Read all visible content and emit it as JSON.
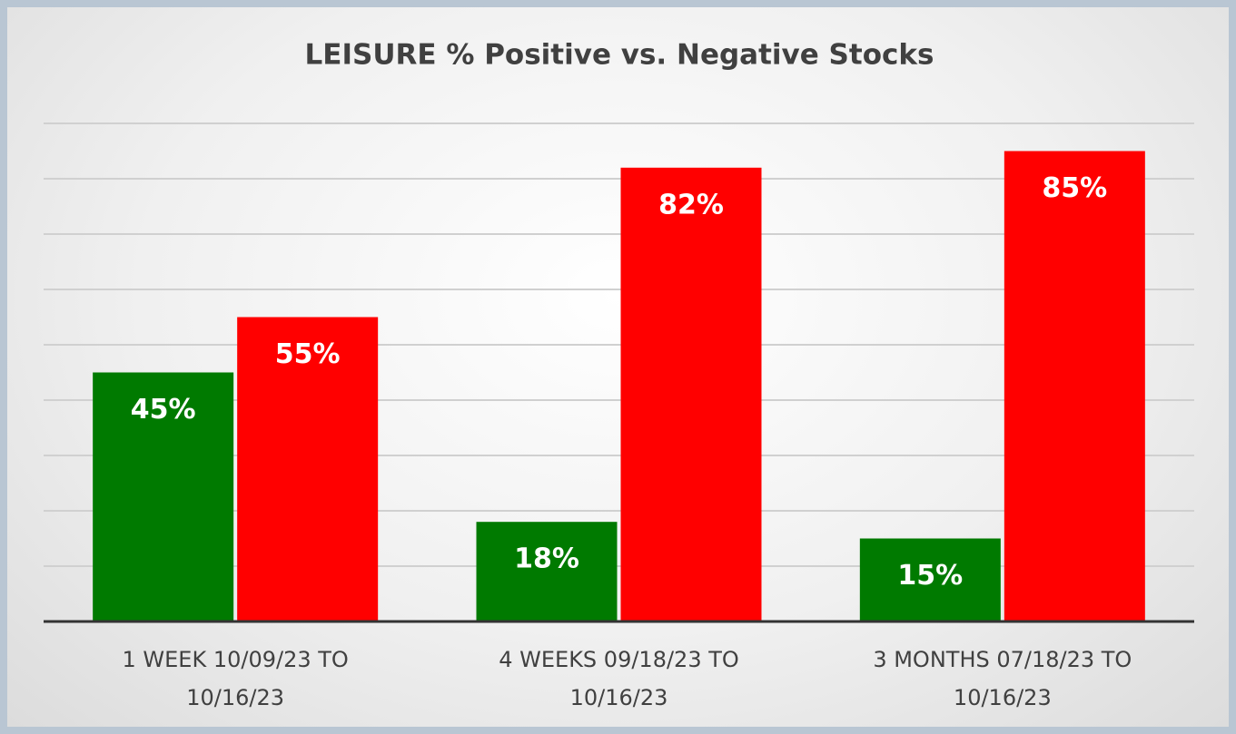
{
  "chart_data": {
    "type": "bar",
    "title": "LEISURE % Positive vs. Negative Stocks",
    "categories": [
      "1 WEEK 10/09/23 TO 10/16/23",
      "4 WEEKS 09/18/23 TO 10/16/23",
      "3 MONTHS 07/18/23 TO 10/16/23"
    ],
    "series": [
      {
        "color": "#007a00",
        "values": [
          45,
          18,
          15
        ],
        "value_labels": [
          "45%",
          "18%",
          "15%"
        ]
      },
      {
        "color": "#ff0000",
        "values": [
          55,
          82,
          85
        ],
        "value_labels": [
          "55%",
          "82%",
          "85%"
        ]
      }
    ],
    "ylim": [
      0,
      90
    ],
    "yticks": [
      0,
      10,
      20,
      30,
      40,
      50,
      60,
      70,
      80,
      90
    ],
    "grid": true
  }
}
